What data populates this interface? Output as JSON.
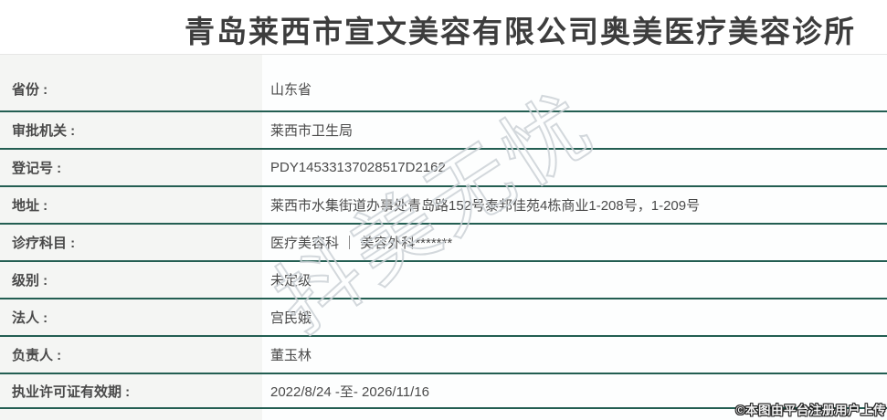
{
  "page": {
    "title": "青岛莱西市宣文美容有限公司奥美医疗美容诊所"
  },
  "table": {
    "rows": [
      {
        "label": "省份 :",
        "value": "山东省"
      },
      {
        "label": "审批机关 :",
        "value": "莱西市卫生局"
      },
      {
        "label": "登记号 :",
        "value": "PDY14533137028517D2162"
      },
      {
        "label": "地址 :",
        "value": "莱西市水集街道办事处青岛路152号泰邦佳苑4栋商业1-208号，1-209号"
      },
      {
        "label": "诊疗科目 :",
        "value": "医疗美容科 ｜ 美容外科*******"
      },
      {
        "label": "级别 :",
        "value": "未定级"
      },
      {
        "label": "法人 :",
        "value": "宫民娥"
      },
      {
        "label": "负责人 :",
        "value": "董玉林"
      },
      {
        "label": "执业许可证有效期 :",
        "value": "2022/8/24 -至- 2026/11/16"
      }
    ]
  },
  "watermark": {
    "diagonal_text": "抖美无忧",
    "credit_text": "©本图由平台注册用户上传"
  },
  "colors": {
    "row_border_green": "#235e52",
    "label_column_bg": "#f4f5f3",
    "title_text": "#3d3d3d",
    "body_text": "#4a4a4a",
    "watermark_stroke": "#ccd2d7"
  }
}
